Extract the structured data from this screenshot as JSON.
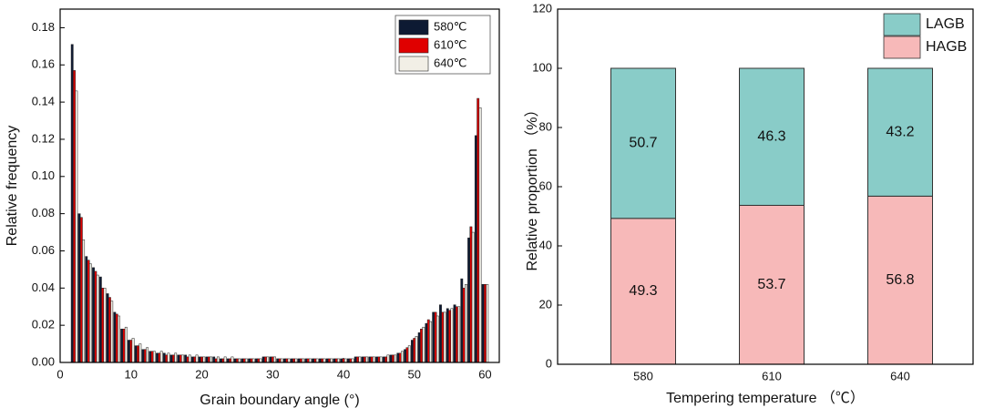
{
  "chart_data": [
    {
      "type": "bar",
      "xlabel": "Grain boundary angle (°)",
      "ylabel": "Relative frequency",
      "x": [
        2,
        3,
        4,
        5,
        6,
        7,
        8,
        9,
        10,
        11,
        12,
        13,
        14,
        15,
        16,
        17,
        18,
        19,
        20,
        21,
        22,
        23,
        24,
        25,
        26,
        27,
        28,
        29,
        30,
        31,
        32,
        33,
        34,
        35,
        36,
        37,
        38,
        39,
        40,
        41,
        42,
        43,
        44,
        45,
        46,
        47,
        48,
        49,
        50,
        51,
        52,
        53,
        54,
        55,
        56,
        57,
        58,
        59,
        60
      ],
      "series": [
        {
          "name": "580℃",
          "color": "#0d1a33",
          "values": [
            0.171,
            0.08,
            0.057,
            0.051,
            0.046,
            0.037,
            0.027,
            0.018,
            0.012,
            0.009,
            0.007,
            0.006,
            0.005,
            0.005,
            0.004,
            0.004,
            0.004,
            0.003,
            0.003,
            0.003,
            0.003,
            0.002,
            0.002,
            0.002,
            0.002,
            0.002,
            0.002,
            0.003,
            0.003,
            0.002,
            0.002,
            0.002,
            0.002,
            0.002,
            0.002,
            0.002,
            0.002,
            0.002,
            0.002,
            0.002,
            0.003,
            0.003,
            0.003,
            0.003,
            0.003,
            0.004,
            0.005,
            0.007,
            0.012,
            0.016,
            0.021,
            0.027,
            0.031,
            0.029,
            0.031,
            0.045,
            0.067,
            0.122,
            0.042
          ]
        },
        {
          "name": "610℃",
          "color": "#e00000",
          "values": [
            0.157,
            0.078,
            0.055,
            0.049,
            0.04,
            0.035,
            0.026,
            0.018,
            0.012,
            0.009,
            0.007,
            0.006,
            0.005,
            0.004,
            0.004,
            0.004,
            0.003,
            0.003,
            0.003,
            0.003,
            0.002,
            0.002,
            0.002,
            0.002,
            0.002,
            0.002,
            0.002,
            0.003,
            0.003,
            0.002,
            0.002,
            0.002,
            0.002,
            0.002,
            0.002,
            0.002,
            0.002,
            0.002,
            0.002,
            0.002,
            0.003,
            0.003,
            0.003,
            0.003,
            0.003,
            0.004,
            0.005,
            0.008,
            0.013,
            0.018,
            0.023,
            0.027,
            0.027,
            0.028,
            0.03,
            0.04,
            0.073,
            0.142,
            0.042
          ]
        },
        {
          "name": "640℃",
          "color": "#f2efe6",
          "values": [
            0.146,
            0.066,
            0.053,
            0.047,
            0.04,
            0.033,
            0.025,
            0.019,
            0.013,
            0.01,
            0.008,
            0.006,
            0.006,
            0.005,
            0.005,
            0.004,
            0.004,
            0.004,
            0.003,
            0.003,
            0.003,
            0.003,
            0.003,
            0.002,
            0.002,
            0.002,
            0.002,
            0.003,
            0.003,
            0.002,
            0.002,
            0.002,
            0.002,
            0.002,
            0.002,
            0.002,
            0.002,
            0.002,
            0.002,
            0.002,
            0.003,
            0.003,
            0.003,
            0.003,
            0.004,
            0.004,
            0.006,
            0.009,
            0.014,
            0.019,
            0.022,
            0.025,
            0.027,
            0.029,
            0.03,
            0.042,
            0.07,
            0.137,
            0.042
          ]
        }
      ],
      "xlim": [
        0,
        62
      ],
      "xticks": [
        0,
        10,
        20,
        30,
        40,
        50,
        60
      ],
      "ylim": [
        0,
        0.19
      ],
      "yticks": [
        {
          "value": 0,
          "label": "0.00"
        },
        0.02,
        0.04,
        0.06,
        0.08,
        {
          "value": 0.1,
          "label": "0.10"
        },
        0.12,
        0.14,
        0.16,
        0.18
      ],
      "legend": "upper right"
    },
    {
      "type": "stacked_bar",
      "xlabel": "Tempering temperature （℃）",
      "ylabel": "Relative proportion （%）",
      "categories": [
        "580",
        "610",
        "640"
      ],
      "series": [
        {
          "name": "HAGB",
          "color": "#f7b9b9",
          "values": [
            49.3,
            53.7,
            56.8
          ]
        },
        {
          "name": "LAGB",
          "color": "#89ccc8",
          "values": [
            50.7,
            46.3,
            43.2
          ]
        }
      ],
      "ylim": [
        0,
        120
      ],
      "yticks": [
        0,
        20,
        40,
        60,
        80,
        100,
        120
      ],
      "legend": "upper right"
    }
  ]
}
